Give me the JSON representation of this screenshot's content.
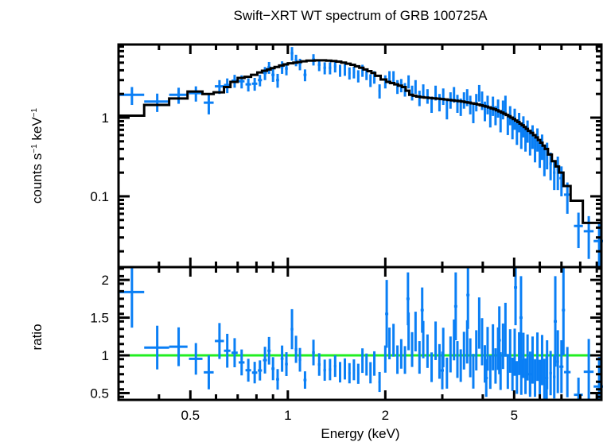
{
  "chart_data": {
    "type": "scatter",
    "title": "Swift−XRT WT spectrum of GRB 100725A",
    "xlabel": "Energy (keV)",
    "xscale": "log",
    "xlim": [
      0.3,
      9.3
    ],
    "x_ticks": [
      {
        "value": 0.5,
        "label": "0.5"
      },
      {
        "value": 1,
        "label": "1"
      },
      {
        "value": 2,
        "label": "2"
      },
      {
        "value": 5,
        "label": "5"
      }
    ],
    "panels": [
      {
        "name": "spectrum",
        "ylabel": "counts s⁻¹ keV⁻¹",
        "ylabel_parts": {
          "main": "counts s",
          "sup1": "−1",
          "mid": " keV",
          "sup2": "−1"
        },
        "yscale": "log",
        "ylim": [
          0.0126,
          8.5
        ],
        "y_ticks": [
          {
            "value": 0.1,
            "label": "0.1"
          },
          {
            "value": 1,
            "label": "1"
          }
        ],
        "series": [
          {
            "name": "data",
            "color": "#0a7ff5",
            "kind": "errorbars"
          },
          {
            "name": "model",
            "color": "#000000",
            "kind": "step"
          }
        ]
      },
      {
        "name": "ratio",
        "ylabel": "ratio",
        "yscale": "linear",
        "ylim": [
          0.41,
          2.17
        ],
        "y_ticks": [
          {
            "value": 0.5,
            "label": "0.5"
          },
          {
            "value": 1,
            "label": "1"
          },
          {
            "value": 1.5,
            "label": "1.5"
          },
          {
            "value": 2,
            "label": "2"
          }
        ],
        "reference_line": {
          "value": 1,
          "color": "#22ee22"
        },
        "series": [
          {
            "name": "ratio",
            "color": "#0a7ff5",
            "kind": "errorbars"
          }
        ]
      }
    ],
    "bins": [
      {
        "e": 0.33,
        "de": 0.03,
        "y": 1.95,
        "dy": 0.5,
        "m": 1.06
      },
      {
        "e": 0.395,
        "de": 0.035,
        "y": 1.6,
        "dy": 0.42,
        "m": 1.45
      },
      {
        "e": 0.46,
        "de": 0.03,
        "y": 1.95,
        "dy": 0.45,
        "m": 1.75
      },
      {
        "e": 0.52,
        "de": 0.025,
        "y": 2.05,
        "dy": 0.45,
        "m": 2.15
      },
      {
        "e": 0.57,
        "de": 0.02,
        "y": 1.55,
        "dy": 0.45,
        "m": 2.0
      },
      {
        "e": 0.615,
        "de": 0.02,
        "y": 2.5,
        "dy": 0.5,
        "m": 2.1
      },
      {
        "e": 0.65,
        "de": 0.015,
        "y": 2.6,
        "dy": 0.55,
        "m": 2.45
      },
      {
        "e": 0.685,
        "de": 0.015,
        "y": 2.95,
        "dy": 0.55,
        "m": 2.85
      },
      {
        "e": 0.72,
        "de": 0.015,
        "y": 2.9,
        "dy": 0.55,
        "m": 3.2
      },
      {
        "e": 0.755,
        "de": 0.015,
        "y": 2.65,
        "dy": 0.5,
        "m": 3.3
      },
      {
        "e": 0.79,
        "de": 0.015,
        "y": 2.7,
        "dy": 0.5,
        "m": 3.5
      },
      {
        "e": 0.82,
        "de": 0.012,
        "y": 3.0,
        "dy": 0.5,
        "m": 3.75
      },
      {
        "e": 0.85,
        "de": 0.012,
        "y": 3.7,
        "dy": 0.7,
        "m": 3.95
      },
      {
        "e": 0.875,
        "de": 0.01,
        "y": 4.35,
        "dy": 0.75,
        "m": 4.1
      },
      {
        "e": 0.9,
        "de": 0.01,
        "y": 3.5,
        "dy": 0.65,
        "m": 4.25
      },
      {
        "e": 0.93,
        "de": 0.01,
        "y": 3.0,
        "dy": 0.6,
        "m": 4.4
      },
      {
        "e": 0.96,
        "de": 0.01,
        "y": 4.4,
        "dy": 0.8,
        "m": 4.6
      },
      {
        "e": 0.99,
        "de": 0.01,
        "y": 4.2,
        "dy": 0.75,
        "m": 4.75
      },
      {
        "e": 1.03,
        "de": 0.01,
        "y": 6.6,
        "dy": 1.3,
        "m": 4.9
      },
      {
        "e": 1.06,
        "de": 0.01,
        "y": 5.4,
        "dy": 0.9,
        "m": 5.0
      },
      {
        "e": 1.09,
        "de": 0.01,
        "y": 4.8,
        "dy": 0.8,
        "m": 5.1
      },
      {
        "e": 1.13,
        "de": 0.012,
        "y": 3.5,
        "dy": 0.6,
        "m": 5.2
      },
      {
        "e": 1.2,
        "de": 0.012,
        "y": 5.5,
        "dy": 0.9,
        "m": 5.3
      },
      {
        "e": 1.25,
        "de": 0.012,
        "y": 4.7,
        "dy": 0.8,
        "m": 5.35
      },
      {
        "e": 1.3,
        "de": 0.012,
        "y": 4.3,
        "dy": 0.75,
        "m": 5.35
      },
      {
        "e": 1.35,
        "de": 0.012,
        "y": 4.3,
        "dy": 0.75,
        "m": 5.3
      },
      {
        "e": 1.4,
        "de": 0.012,
        "y": 4.5,
        "dy": 0.75,
        "m": 5.25
      },
      {
        "e": 1.45,
        "de": 0.012,
        "y": 4.0,
        "dy": 0.7,
        "m": 5.15
      },
      {
        "e": 1.5,
        "de": 0.012,
        "y": 4.1,
        "dy": 0.7,
        "m": 5.0
      },
      {
        "e": 1.55,
        "de": 0.012,
        "y": 3.7,
        "dy": 0.65,
        "m": 4.85
      },
      {
        "e": 1.6,
        "de": 0.012,
        "y": 3.8,
        "dy": 0.65,
        "m": 4.7
      },
      {
        "e": 1.65,
        "de": 0.012,
        "y": 3.4,
        "dy": 0.6,
        "m": 4.5
      },
      {
        "e": 1.7,
        "de": 0.012,
        "y": 4.0,
        "dy": 0.7,
        "m": 4.3
      },
      {
        "e": 1.75,
        "de": 0.012,
        "y": 3.6,
        "dy": 0.6,
        "m": 4.1
      },
      {
        "e": 1.8,
        "de": 0.012,
        "y": 3.0,
        "dy": 0.55,
        "m": 3.9
      },
      {
        "e": 1.85,
        "de": 0.012,
        "y": 3.3,
        "dy": 0.6,
        "m": 3.7
      },
      {
        "e": 1.92,
        "de": 0.015,
        "y": 2.2,
        "dy": 0.45,
        "m": 3.4
      },
      {
        "e": 2.0,
        "de": 0.015,
        "y": 2.9,
        "dy": 0.55,
        "m": 3.05
      },
      {
        "e": 2.06,
        "de": 0.012,
        "y": 3.3,
        "dy": 0.6,
        "m": 2.85
      },
      {
        "e": 2.12,
        "de": 0.012,
        "y": 3.3,
        "dy": 0.6,
        "m": 2.75
      },
      {
        "e": 2.18,
        "de": 0.012,
        "y": 2.5,
        "dy": 0.5,
        "m": 2.65
      },
      {
        "e": 2.24,
        "de": 0.012,
        "y": 2.6,
        "dy": 0.5,
        "m": 2.55
      },
      {
        "e": 2.3,
        "de": 0.012,
        "y": 2.3,
        "dy": 0.45,
        "m": 2.45
      },
      {
        "e": 2.36,
        "de": 0.012,
        "y": 2.9,
        "dy": 0.55,
        "m": 2.2
      },
      {
        "e": 2.42,
        "de": 0.012,
        "y": 2.1,
        "dy": 0.45,
        "m": 1.95
      },
      {
        "e": 2.48,
        "de": 0.012,
        "y": 2.5,
        "dy": 0.5,
        "m": 1.9
      },
      {
        "e": 2.55,
        "de": 0.012,
        "y": 1.8,
        "dy": 0.4,
        "m": 1.85
      },
      {
        "e": 2.62,
        "de": 0.012,
        "y": 2.2,
        "dy": 0.45,
        "m": 1.82
      },
      {
        "e": 2.7,
        "de": 0.014,
        "y": 1.9,
        "dy": 0.4,
        "m": 1.8
      },
      {
        "e": 2.78,
        "de": 0.014,
        "y": 1.5,
        "dy": 0.35,
        "m": 1.78
      },
      {
        "e": 2.86,
        "de": 0.014,
        "y": 2.1,
        "dy": 0.45,
        "m": 1.76
      },
      {
        "e": 2.94,
        "de": 0.014,
        "y": 1.6,
        "dy": 0.4,
        "m": 1.74
      },
      {
        "e": 3.02,
        "de": 0.014,
        "y": 1.9,
        "dy": 0.45,
        "m": 1.72
      },
      {
        "e": 3.1,
        "de": 0.014,
        "y": 1.3,
        "dy": 0.35,
        "m": 1.7
      },
      {
        "e": 3.18,
        "de": 0.014,
        "y": 1.7,
        "dy": 0.4,
        "m": 1.68
      },
      {
        "e": 3.26,
        "de": 0.014,
        "y": 2.0,
        "dy": 0.45,
        "m": 1.66
      },
      {
        "e": 3.34,
        "de": 0.014,
        "y": 1.55,
        "dy": 0.4,
        "m": 1.64
      },
      {
        "e": 3.42,
        "de": 0.014,
        "y": 1.4,
        "dy": 0.35,
        "m": 1.62
      },
      {
        "e": 3.5,
        "de": 0.014,
        "y": 1.7,
        "dy": 0.4,
        "m": 1.6
      },
      {
        "e": 3.58,
        "de": 0.014,
        "y": 1.85,
        "dy": 0.45,
        "m": 1.57
      },
      {
        "e": 3.66,
        "de": 0.014,
        "y": 1.5,
        "dy": 0.4,
        "m": 1.55
      },
      {
        "e": 3.74,
        "de": 0.014,
        "y": 1.2,
        "dy": 0.35,
        "m": 1.52
      },
      {
        "e": 3.82,
        "de": 0.014,
        "y": 1.6,
        "dy": 0.4,
        "m": 1.5
      },
      {
        "e": 3.9,
        "de": 0.014,
        "y": 2.1,
        "dy": 0.5,
        "m": 1.47
      },
      {
        "e": 3.98,
        "de": 0.014,
        "y": 1.7,
        "dy": 0.45,
        "m": 1.44
      },
      {
        "e": 4.06,
        "de": 0.014,
        "y": 1.25,
        "dy": 0.35,
        "m": 1.41
      },
      {
        "e": 4.14,
        "de": 0.014,
        "y": 1.5,
        "dy": 0.4,
        "m": 1.38
      },
      {
        "e": 4.22,
        "de": 0.014,
        "y": 1.05,
        "dy": 0.3,
        "m": 1.35
      },
      {
        "e": 4.3,
        "de": 0.014,
        "y": 1.45,
        "dy": 0.4,
        "m": 1.31
      },
      {
        "e": 4.38,
        "de": 0.014,
        "y": 1.1,
        "dy": 0.3,
        "m": 1.28
      },
      {
        "e": 4.46,
        "de": 0.014,
        "y": 1.35,
        "dy": 0.35,
        "m": 1.24
      },
      {
        "e": 4.54,
        "de": 0.014,
        "y": 0.95,
        "dy": 0.3,
        "m": 1.2
      },
      {
        "e": 4.62,
        "de": 0.014,
        "y": 1.3,
        "dy": 0.35,
        "m": 1.16
      },
      {
        "e": 4.7,
        "de": 0.014,
        "y": 1.5,
        "dy": 0.4,
        "m": 1.12
      },
      {
        "e": 4.78,
        "de": 0.014,
        "y": 0.85,
        "dy": 0.25,
        "m": 1.08
      },
      {
        "e": 4.86,
        "de": 0.014,
        "y": 1.1,
        "dy": 0.3,
        "m": 1.04
      },
      {
        "e": 4.94,
        "de": 0.014,
        "y": 0.75,
        "dy": 0.22,
        "m": 1.0
      },
      {
        "e": 5.02,
        "de": 0.014,
        "y": 1.0,
        "dy": 0.3,
        "m": 0.96
      },
      {
        "e": 5.1,
        "de": 0.014,
        "y": 0.65,
        "dy": 0.2,
        "m": 0.92
      },
      {
        "e": 5.18,
        "de": 0.014,
        "y": 0.9,
        "dy": 0.25,
        "m": 0.88
      },
      {
        "e": 5.26,
        "de": 0.014,
        "y": 0.6,
        "dy": 0.2,
        "m": 0.84
      },
      {
        "e": 5.34,
        "de": 0.014,
        "y": 0.8,
        "dy": 0.24,
        "m": 0.8
      },
      {
        "e": 5.42,
        "de": 0.014,
        "y": 0.55,
        "dy": 0.18,
        "m": 0.76
      },
      {
        "e": 5.5,
        "de": 0.014,
        "y": 0.7,
        "dy": 0.22,
        "m": 0.72
      },
      {
        "e": 5.6,
        "de": 0.02,
        "y": 0.5,
        "dy": 0.17,
        "m": 0.68
      },
      {
        "e": 5.7,
        "de": 0.02,
        "y": 0.6,
        "dy": 0.2,
        "m": 0.64
      },
      {
        "e": 5.8,
        "de": 0.02,
        "y": 0.42,
        "dy": 0.15,
        "m": 0.6
      },
      {
        "e": 5.9,
        "de": 0.02,
        "y": 0.55,
        "dy": 0.18,
        "m": 0.56
      },
      {
        "e": 6.0,
        "de": 0.02,
        "y": 0.36,
        "dy": 0.13,
        "m": 0.52
      },
      {
        "e": 6.1,
        "de": 0.02,
        "y": 0.45,
        "dy": 0.16,
        "m": 0.48
      },
      {
        "e": 6.2,
        "de": 0.02,
        "y": 0.3,
        "dy": 0.12,
        "m": 0.44
      },
      {
        "e": 6.32,
        "de": 0.04,
        "y": 0.35,
        "dy": 0.13,
        "m": 0.4
      },
      {
        "e": 6.48,
        "de": 0.06,
        "y": 0.26,
        "dy": 0.1,
        "m": 0.34
      },
      {
        "e": 6.65,
        "de": 0.06,
        "y": 0.2,
        "dy": 0.08,
        "m": 0.28
      },
      {
        "e": 6.82,
        "de": 0.06,
        "y": 0.22,
        "dy": 0.1,
        "m": 0.24
      },
      {
        "e": 7.0,
        "de": 0.1,
        "y": 0.17,
        "dy": 0.07,
        "m": 0.2
      },
      {
        "e": 7.3,
        "de": 0.17,
        "y": 0.105,
        "dy": 0.045,
        "m": 0.135
      },
      {
        "e": 7.9,
        "de": 0.25,
        "y": 0.042,
        "dy": 0.02,
        "m": 0.088
      },
      {
        "e": 8.5,
        "de": 0.3,
        "y": 0.036,
        "dy": 0.02,
        "m": 0.046
      },
      {
        "e": 9.15,
        "de": 0.35,
        "y": 0.027,
        "dy": 0.018,
        "m": 0.046
      }
    ],
    "ratio_extra": [
      {
        "e": 2.02,
        "r": 1.55,
        "dr": 0.45
      },
      {
        "e": 2.35,
        "r": 1.75,
        "dr": 0.35
      },
      {
        "e": 2.6,
        "r": 1.6,
        "dr": 0.3
      },
      {
        "e": 3.3,
        "r": 1.65,
        "dr": 0.45
      },
      {
        "e": 3.6,
        "r": 1.8,
        "dr": 0.45
      },
      {
        "e": 4.5,
        "r": 1.2,
        "dr": 0.45
      },
      {
        "e": 5.05,
        "r": 1.9,
        "dr": 0.5
      },
      {
        "e": 5.25,
        "r": 1.5,
        "dr": 0.55
      },
      {
        "e": 6.7,
        "r": 1.45,
        "dr": 0.6
      },
      {
        "e": 7.1,
        "r": 1.6,
        "dr": 0.6
      },
      {
        "e": 5.6,
        "r": 0.75,
        "dr": 0.3
      },
      {
        "e": 6.3,
        "r": 0.7,
        "dr": 0.3
      },
      {
        "e": 4.1,
        "r": 0.7,
        "dr": 0.25
      },
      {
        "e": 3.0,
        "r": 0.8,
        "dr": 0.25
      }
    ]
  }
}
